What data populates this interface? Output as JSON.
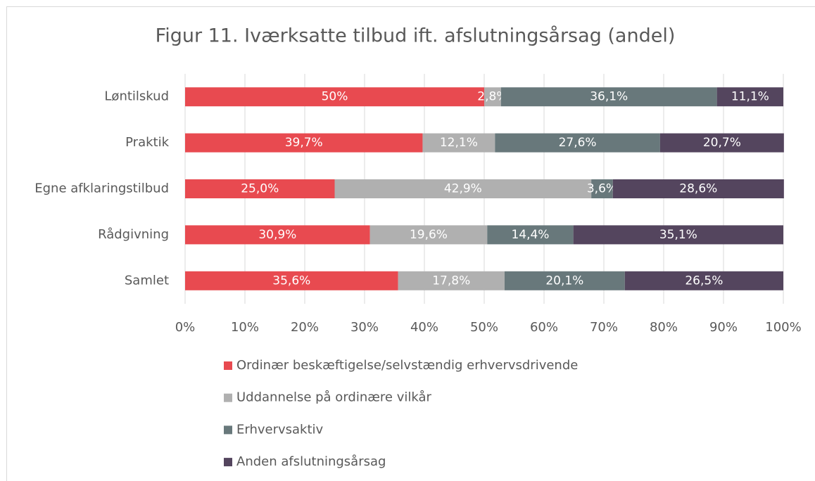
{
  "chart_data": {
    "type": "stacked_bar_horizontal",
    "title": "Figur 11. Iværksatte tilbud ift. afslutningsårsag (andel)",
    "categories": [
      "Løntilskud",
      "Praktik",
      "Egne afklaringstilbud",
      "Rådgivning",
      "Samlet"
    ],
    "series": [
      {
        "name": "Ordinær beskæftigelse/selvstændig erhvervsdrivende",
        "color": "#e84a50",
        "values": [
          50,
          39.7,
          25.0,
          30.9,
          35.6
        ],
        "value_labels": [
          "50%",
          "39,7%",
          "25,0%",
          "30,9%",
          "35,6%"
        ]
      },
      {
        "name": "Uddannelse på ordinære vilkår",
        "color": "#b0b0b0",
        "values": [
          2.8,
          12.1,
          42.9,
          19.6,
          17.8
        ],
        "value_labels": [
          "2,8%",
          "12,1%",
          "42,9%",
          "19,6%",
          "17,8%"
        ]
      },
      {
        "name": "Erhvervsaktiv",
        "color": "#68787b",
        "values": [
          36.1,
          27.6,
          3.6,
          14.4,
          20.1
        ],
        "value_labels": [
          "36,1%",
          "27,6%",
          "3,6%",
          "14,4%",
          "20,1%"
        ]
      },
      {
        "name": "Anden afslutningsårsag",
        "color": "#54455e",
        "values": [
          11.1,
          20.7,
          28.6,
          35.1,
          26.5
        ],
        "value_labels": [
          "11,1%",
          "20,7%",
          "28,6%",
          "35,1%",
          "26,5%"
        ]
      }
    ],
    "xlim": [
      0,
      100
    ],
    "xticks": [
      {
        "value": 0,
        "label": "0%"
      },
      {
        "value": 10,
        "label": "10%"
      },
      {
        "value": 20,
        "label": "20%"
      },
      {
        "value": 30,
        "label": "30%"
      },
      {
        "value": 40,
        "label": "40%"
      },
      {
        "value": 50,
        "label": "50%"
      },
      {
        "value": 60,
        "label": "60%"
      },
      {
        "value": 70,
        "label": "70%"
      },
      {
        "value": 80,
        "label": "80%"
      },
      {
        "value": 90,
        "label": "90%"
      },
      {
        "value": 100,
        "label": "100%"
      }
    ],
    "grid": true,
    "legend": "bottom"
  }
}
